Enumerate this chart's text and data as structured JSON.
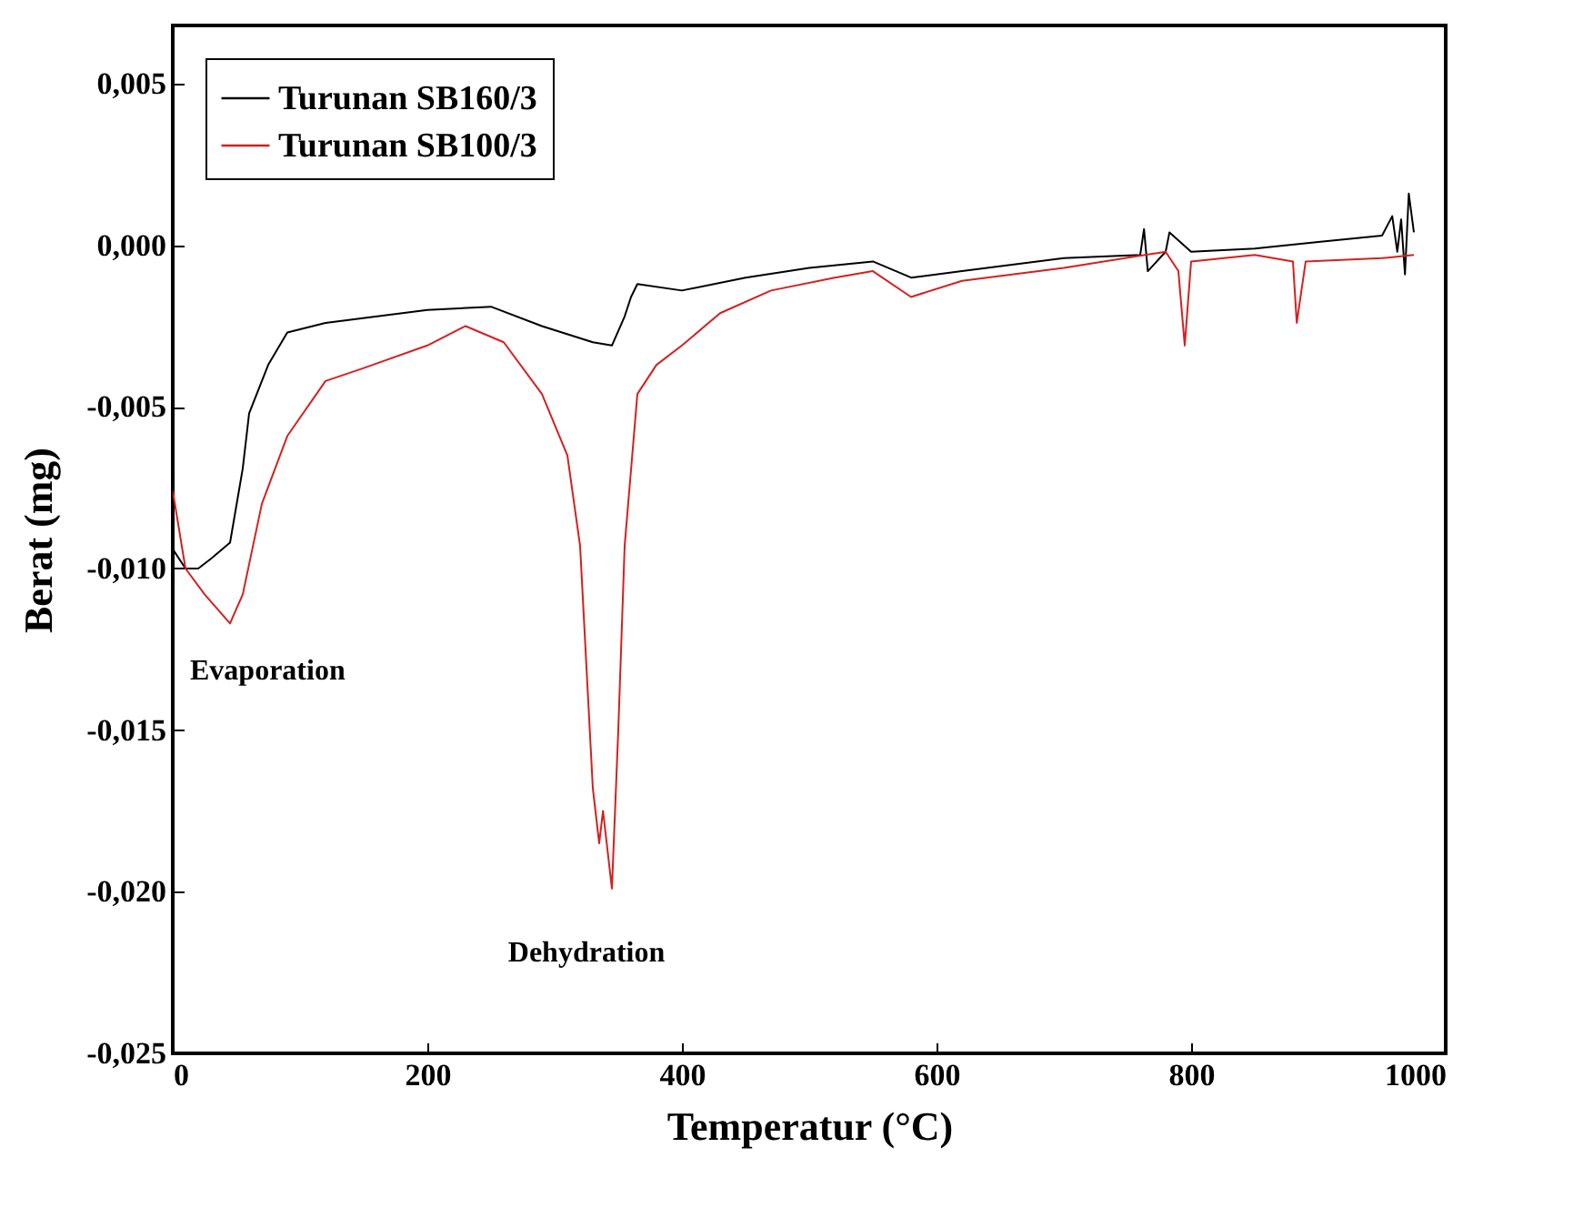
{
  "chart_data": {
    "type": "line",
    "xlabel": "Temperatur (°C)",
    "ylabel": "Berat (mg)",
    "xlim": [
      0,
      1000
    ],
    "xticks": [
      0,
      200,
      400,
      600,
      800,
      1000
    ],
    "ylim": [
      -0.025,
      0.0068
    ],
    "yticks": [
      {
        "value": -0.025,
        "label": "-0,025"
      },
      {
        "value": -0.02,
        "label": "-0,020"
      },
      {
        "value": -0.015,
        "label": "-0,015"
      },
      {
        "value": -0.01,
        "label": "-0,010"
      },
      {
        "value": -0.005,
        "label": "-0,005"
      },
      {
        "value": 0,
        "label": "0,000"
      },
      {
        "value": 0.005,
        "label": "0,005"
      }
    ],
    "grid": false,
    "legend": "top left",
    "line_style": "solid",
    "marker": "none",
    "annotations": [
      {
        "text": "Evaporation",
        "x": 45,
        "y": -0.0117
      },
      {
        "text": "Dehydration",
        "x": 345,
        "y": -0.0199
      }
    ],
    "series": [
      {
        "name": "Turunan SB160/3",
        "color": "#000000",
        "x": [
          0,
          10,
          20,
          30,
          45,
          55,
          60,
          75,
          90,
          120,
          200,
          250,
          290,
          330,
          345,
          355,
          360,
          365,
          400,
          450,
          500,
          550,
          580,
          620,
          700,
          760,
          763,
          766,
          780,
          783,
          800,
          850,
          900,
          950,
          958,
          962,
          965,
          968,
          971,
          975
        ],
        "values": [
          -0.0094,
          -0.01,
          -0.01,
          -0.0097,
          -0.0092,
          -0.0069,
          -0.0052,
          -0.0037,
          -0.0027,
          -0.0024,
          -0.002,
          -0.0019,
          -0.0025,
          -0.003,
          -0.0031,
          -0.0022,
          -0.0016,
          -0.0012,
          -0.0014,
          -0.001,
          -0.0007,
          -0.0005,
          -0.001,
          -0.0008,
          -0.0004,
          -0.0003,
          0.0005,
          -0.0008,
          -0.0002,
          0.0004,
          -0.0002,
          -0.0001,
          0.0001,
          0.0003,
          0.0009,
          -0.0002,
          0.0008,
          -0.0009,
          0.0016,
          0.0004
        ]
      },
      {
        "name": "Turunan SB100/3",
        "color": "#d42020",
        "x": [
          0,
          10,
          25,
          45,
          55,
          70,
          90,
          120,
          150,
          200,
          230,
          260,
          290,
          310,
          320,
          330,
          335,
          338,
          345,
          350,
          355,
          365,
          380,
          400,
          430,
          470,
          520,
          550,
          580,
          620,
          700,
          780,
          790,
          795,
          800,
          850,
          880,
          883,
          890,
          950,
          975
        ],
        "values": [
          -0.0076,
          -0.01,
          -0.0108,
          -0.0117,
          -0.0108,
          -0.008,
          -0.0059,
          -0.0042,
          -0.0038,
          -0.0031,
          -0.0025,
          -0.003,
          -0.0046,
          -0.0065,
          -0.0093,
          -0.0168,
          -0.0185,
          -0.0175,
          -0.0199,
          -0.015,
          -0.0093,
          -0.0046,
          -0.0037,
          -0.0031,
          -0.0021,
          -0.0014,
          -0.001,
          -0.0008,
          -0.0016,
          -0.0011,
          -0.0007,
          -0.0002,
          -0.0008,
          -0.0031,
          -0.0005,
          -0.0003,
          -0.0005,
          -0.0024,
          -0.0005,
          -0.0004,
          -0.0003
        ]
      }
    ]
  }
}
